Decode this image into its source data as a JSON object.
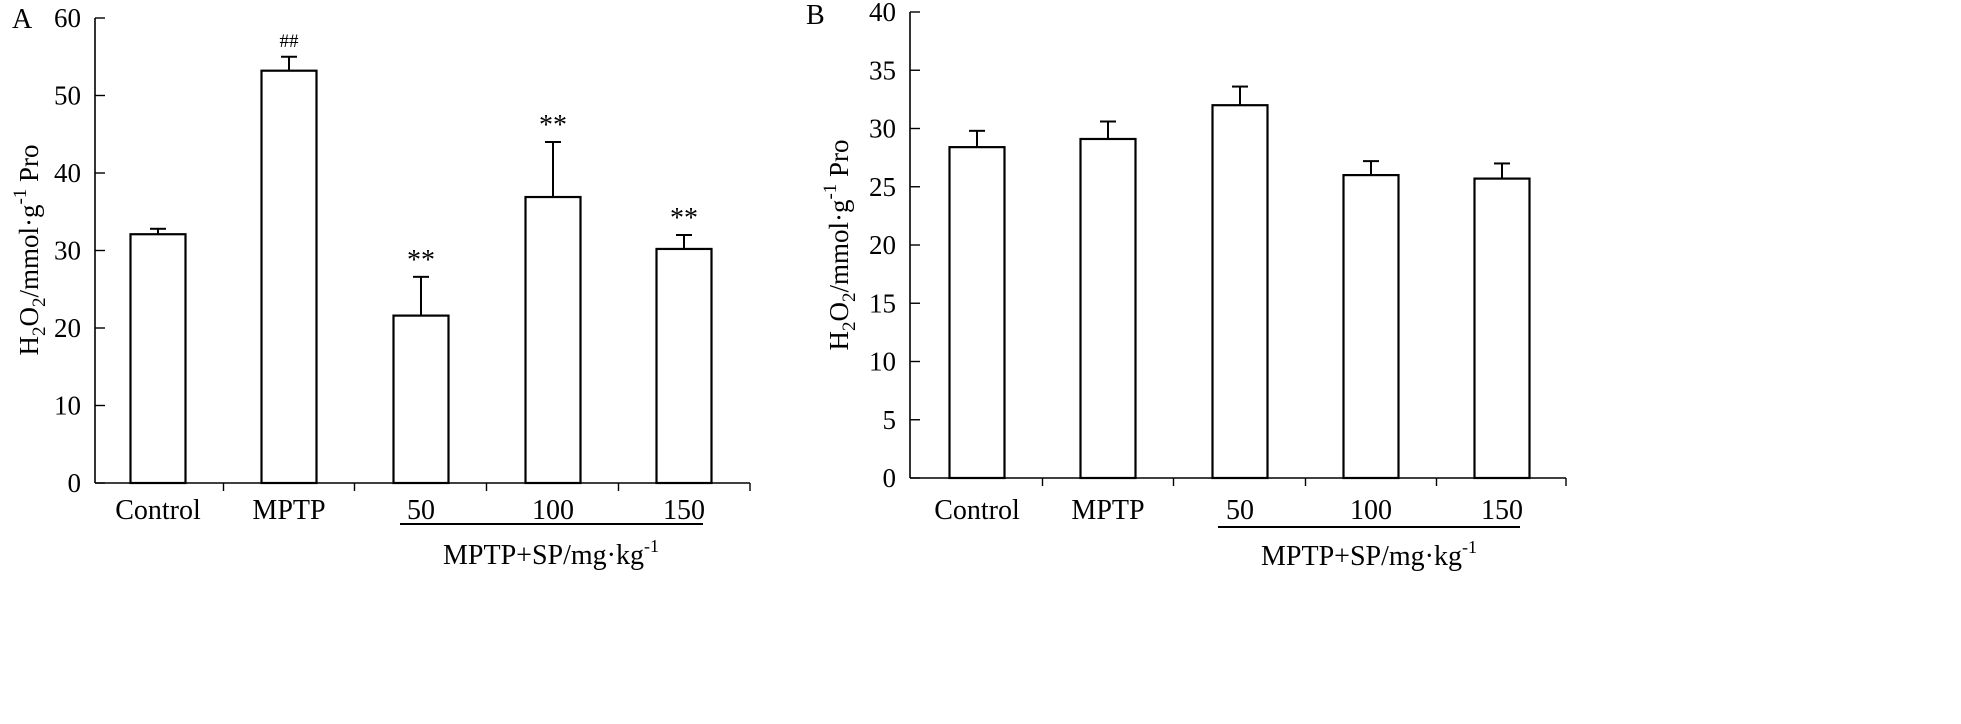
{
  "chart_data": [
    {
      "type": "bar",
      "panel_label": "A",
      "categories": [
        "Control",
        "MPTP",
        "50",
        "100",
        "150"
      ],
      "values": [
        32.1,
        53.2,
        21.6,
        36.9,
        30.2
      ],
      "errors": [
        0.7,
        1.8,
        5.0,
        7.1,
        1.8
      ],
      "annotations": [
        "",
        "##",
        "**",
        "**",
        "**"
      ],
      "ylabel": {
        "main": "H",
        "sub1": "2",
        "mid": "O",
        "sub2": "2",
        "unit": "/mmol·g",
        "sup": "-1",
        "tail": " Pro"
      },
      "group_label": {
        "main": "MPTP+SP/mg·kg",
        "sup": "-1"
      },
      "ylim": [
        0,
        60
      ],
      "yticks": [
        "0",
        "10",
        "20",
        "30",
        "40",
        "50",
        "60"
      ]
    },
    {
      "type": "bar",
      "panel_label": "B",
      "categories": [
        "Control",
        "MPTP",
        "50",
        "100",
        "150"
      ],
      "values": [
        28.4,
        29.1,
        32.0,
        26.0,
        25.7
      ],
      "errors": [
        1.4,
        1.5,
        1.6,
        1.2,
        1.3
      ],
      "annotations": [
        "",
        "",
        "",
        "",
        ""
      ],
      "ylabel": {
        "main": "H",
        "sub1": "2",
        "mid": "O",
        "sub2": "2",
        "unit": "/mmol·g",
        "sup": "-1",
        "tail": " Pro"
      },
      "group_label": {
        "main": "MPTP+SP/mg·kg",
        "sup": "-1"
      },
      "ylim": [
        0,
        40
      ],
      "yticks": [
        "0",
        "5",
        "10",
        "15",
        "20",
        "25",
        "30",
        "35",
        "40"
      ]
    }
  ]
}
